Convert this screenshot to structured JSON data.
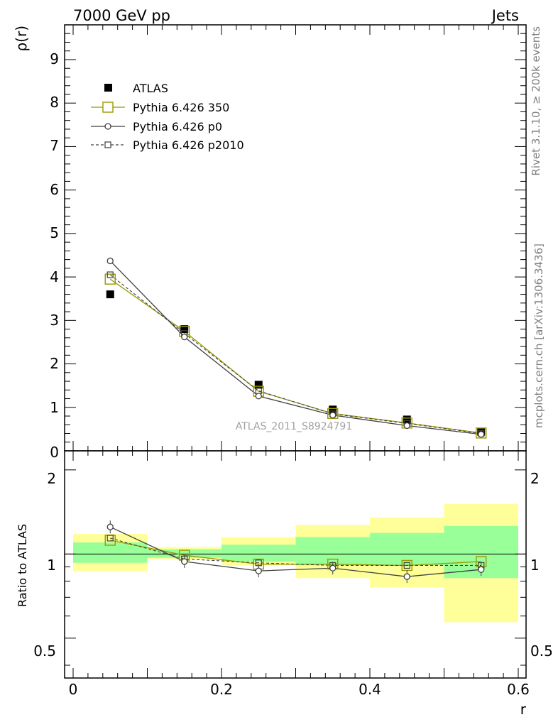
{
  "header": {
    "left_title": "7000 GeV pp",
    "right_title": "Jets",
    "side_text_top": "Rivet 3.1.10, ≥ 200k events",
    "side_text_bottom": "mcplots.cern.ch [arXiv:1306.3436]"
  },
  "chart_data": [
    {
      "type": "scatter",
      "title": "",
      "xlabel": "r",
      "ylabel": "ρ(r)",
      "xlim": [
        0,
        0.6
      ],
      "ylim": [
        0,
        9.8
      ],
      "analysis_label": "ATLAS_2011_S8924791",
      "x": [
        0.05,
        0.15,
        0.25,
        0.35,
        0.45,
        0.55
      ],
      "x_tick_labels": [
        "0",
        "0.2",
        "0.4",
        "0.6"
      ],
      "y_tick_labels": [
        "0",
        "1",
        "2",
        "3",
        "4",
        "5",
        "6",
        "7",
        "8",
        "9"
      ],
      "series": [
        {
          "name": "ATLAS",
          "color": "#000000",
          "values": [
            3.6,
            2.8,
            1.52,
            0.95,
            0.72,
            0.44
          ]
        },
        {
          "name": "Pythia 6.426 350",
          "color": "#999900",
          "values": [
            3.95,
            2.75,
            1.37,
            0.86,
            0.64,
            0.41
          ]
        },
        {
          "name": "Pythia 6.426 p0",
          "color": "#404040",
          "values": [
            4.37,
            2.62,
            1.26,
            0.82,
            0.58,
            0.38
          ]
        },
        {
          "name": "Pythia 6.426 p2010",
          "color": "#404040",
          "values": [
            4.05,
            2.7,
            1.38,
            0.85,
            0.63,
            0.4
          ]
        }
      ]
    },
    {
      "type": "line",
      "title": "",
      "xlabel": "r",
      "ylabel": "Ratio to ATLAS",
      "xlim": [
        0,
        0.6
      ],
      "ylim": [
        0.36,
        2.34
      ],
      "y_tick_labels": [
        "0.5",
        "1",
        "2"
      ],
      "y_tick_values": [
        0.5,
        1,
        2
      ],
      "x_tick_labels": [
        "0",
        "0.2",
        "0.4",
        "0.6"
      ],
      "bins": [
        [
          0,
          0.1
        ],
        [
          0.1,
          0.2
        ],
        [
          0.2,
          0.3
        ],
        [
          0.3,
          0.4
        ],
        [
          0.4,
          0.5
        ],
        [
          0.5,
          0.6
        ]
      ],
      "band_yellow": [
        [
          0.87,
          1.18
        ],
        [
          0.96,
          1.06
        ],
        [
          0.91,
          1.15
        ],
        [
          0.82,
          1.27
        ],
        [
          0.76,
          1.35
        ],
        [
          0.57,
          1.51
        ]
      ],
      "band_green": [
        [
          0.93,
          1.1
        ],
        [
          0.97,
          1.04
        ],
        [
          0.94,
          1.08
        ],
        [
          0.91,
          1.15
        ],
        [
          0.91,
          1.19
        ],
        [
          0.82,
          1.26
        ]
      ],
      "x": [
        0.05,
        0.15,
        0.25,
        0.35,
        0.45,
        0.55
      ],
      "series": [
        {
          "name": "Pythia 6.426 350",
          "color": "#999900",
          "values": [
            1.12,
            0.99,
            0.92,
            0.92,
            0.91,
            0.94
          ]
        },
        {
          "name": "Pythia 6.426 p0",
          "color": "#404040",
          "values": [
            1.25,
            0.94,
            0.87,
            0.89,
            0.83,
            0.88
          ]
        },
        {
          "name": "Pythia 6.426 p2010",
          "color": "#404040",
          "values": [
            1.14,
            0.96,
            0.93,
            0.91,
            0.91,
            0.91
          ]
        }
      ]
    }
  ]
}
